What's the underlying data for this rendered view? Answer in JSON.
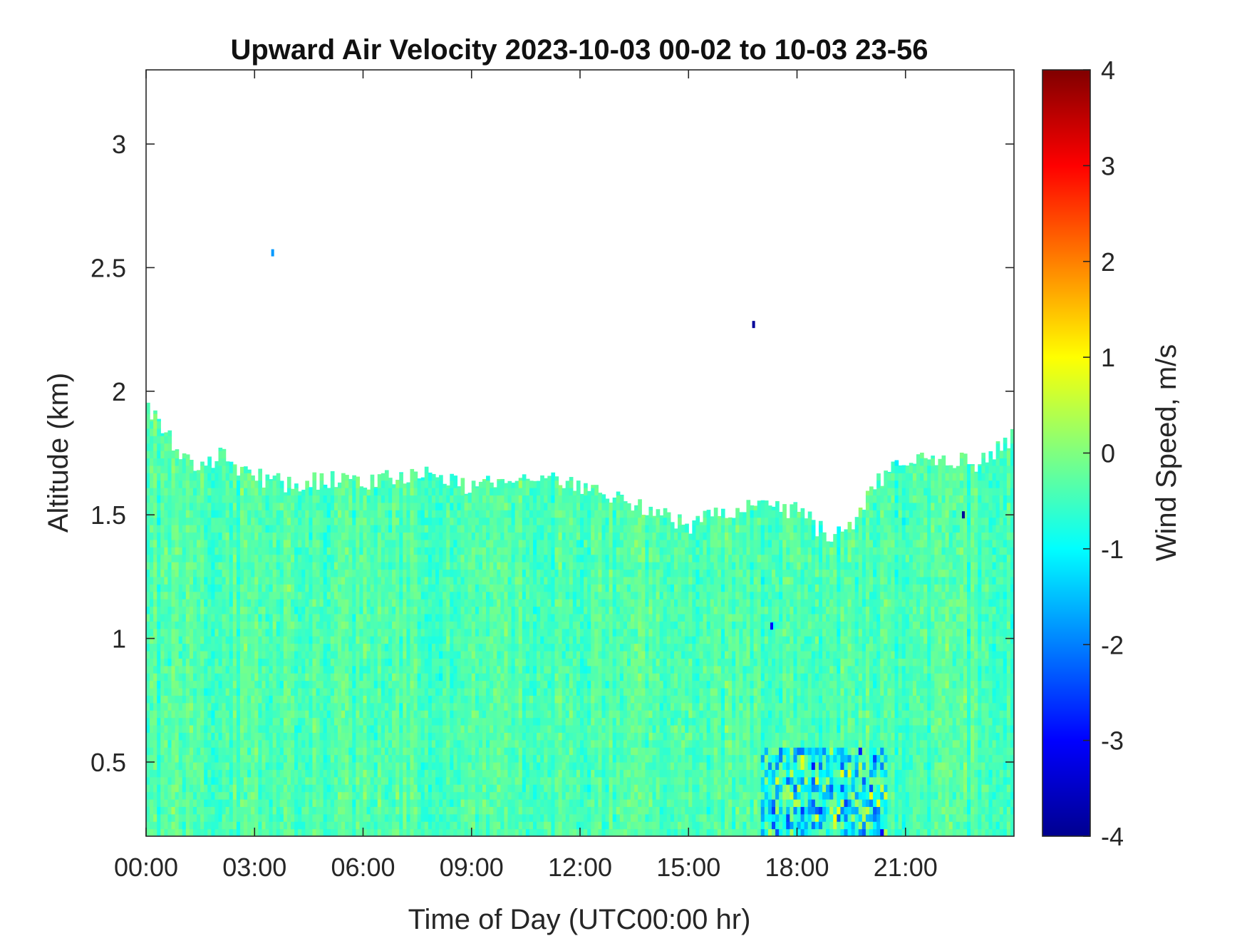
{
  "chart_data": {
    "type": "heatmap",
    "title": "Upward Air Velocity 2023-10-03 00-02 to 10-03 23-56",
    "xlabel": "Time of Day (UTC00:00 hr)",
    "ylabel": "Altitude (km)",
    "colorbar_label": "Wind Speed, m/s",
    "xlim": [
      0,
      24
    ],
    "ylim": [
      0.2,
      3.3
    ],
    "clim": [
      -4,
      4
    ],
    "colormap": "jet",
    "x_ticks": [
      0,
      3,
      6,
      9,
      12,
      15,
      18,
      21
    ],
    "x_tick_labels": [
      "00:00",
      "03:00",
      "06:00",
      "09:00",
      "12:00",
      "15:00",
      "18:00",
      "21:00"
    ],
    "y_ticks": [
      0.5,
      1,
      1.5,
      2,
      2.5,
      3
    ],
    "y_tick_labels": [
      "0.5",
      "1",
      "1.5",
      "2",
      "2.5",
      "3"
    ],
    "colorbar_ticks": [
      -4,
      -3,
      -2,
      -1,
      0,
      1,
      2,
      3,
      4
    ],
    "colorbar_tick_labels": [
      "-4",
      "-3",
      "-2",
      "-1",
      "0",
      "1",
      "2",
      "3",
      "4"
    ],
    "typical_value": -0.4,
    "data_top_altitude_profile": {
      "hours": [
        0,
        0.4,
        1,
        1.5,
        2,
        3,
        4,
        5,
        6,
        7,
        8,
        9,
        10,
        11,
        12,
        13,
        14,
        15,
        16,
        17,
        18,
        18.8,
        19.5,
        20,
        21,
        22,
        23,
        24
      ],
      "top_km": [
        1.95,
        1.88,
        1.72,
        1.68,
        1.74,
        1.66,
        1.62,
        1.64,
        1.62,
        1.66,
        1.66,
        1.6,
        1.65,
        1.68,
        1.62,
        1.56,
        1.52,
        1.46,
        1.5,
        1.54,
        1.52,
        1.42,
        1.44,
        1.6,
        1.72,
        1.74,
        1.7,
        1.82
      ]
    },
    "notable_features": [
      {
        "hours": [
          17.0,
          20.5
        ],
        "altitude_km": [
          0.2,
          0.55
        ],
        "value_range": [
          -3,
          2.5
        ],
        "description": "mixed strong updrafts and downdrafts"
      },
      {
        "hours": [
          3.5,
          3.5
        ],
        "altitude_km": [
          2.56,
          2.56
        ],
        "value_range": [
          -1.8,
          -1.8
        ]
      },
      {
        "hours": [
          16.8,
          16.8
        ],
        "altitude_km": [
          2.27,
          2.27
        ],
        "value_range": [
          -3.8,
          -3.8
        ]
      },
      {
        "hours": [
          17.3,
          17.3
        ],
        "altitude_km": [
          1.05,
          1.05
        ],
        "value_range": [
          -3.0,
          -3.0
        ]
      },
      {
        "hours": [
          22.6,
          22.6
        ],
        "altitude_km": [
          1.5,
          1.5
        ],
        "value_range": [
          -3.8,
          -3.8
        ]
      }
    ]
  }
}
